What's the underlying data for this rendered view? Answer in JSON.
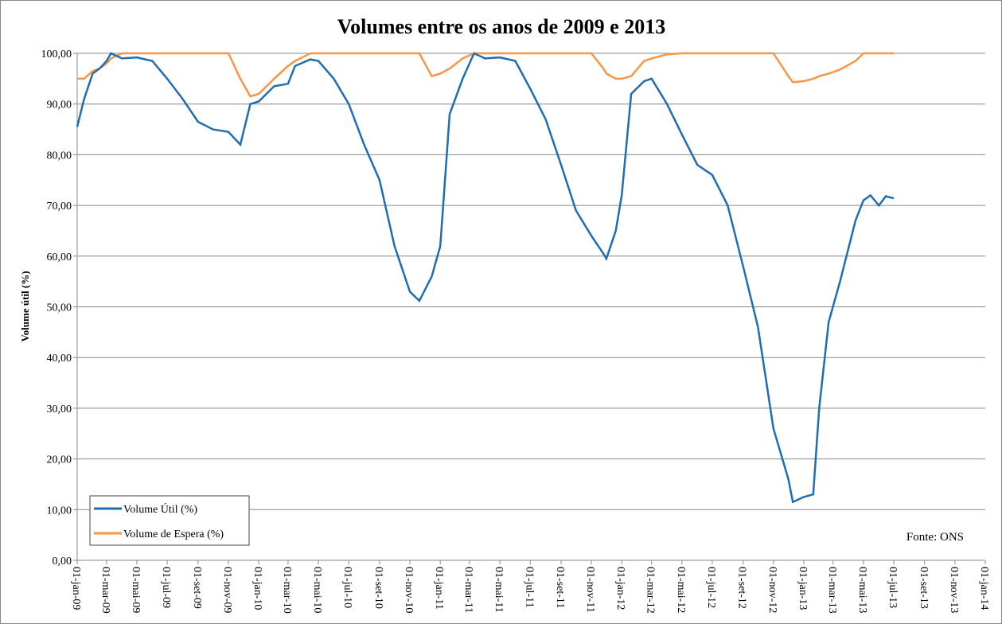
{
  "chart_data": {
    "type": "line",
    "title": "Volumes entre os anos de 2009 e 2013",
    "y_label": "Volume útil (%)",
    "annotation": "Fonte: ONS",
    "legend": "lower left",
    "grid": true,
    "ylim": [
      0,
      100
    ],
    "yticks": [
      {
        "value": 0,
        "label": "0,00"
      },
      {
        "value": 10,
        "label": "10,00"
      },
      {
        "value": 20,
        "label": "20,00"
      },
      {
        "value": 30,
        "label": "30,00"
      },
      {
        "value": 40,
        "label": "40,00"
      },
      {
        "value": 50,
        "label": "50,00"
      },
      {
        "value": 60,
        "label": "60,00"
      },
      {
        "value": 70,
        "label": "70,00"
      },
      {
        "value": 80,
        "label": "80,00"
      },
      {
        "value": 90,
        "label": "90,00"
      },
      {
        "value": 100,
        "label": "100,00"
      }
    ],
    "xlim": [
      "2009-01-01",
      "2014-01-01"
    ],
    "xticks": [
      {
        "value": "2009-01-01",
        "label": "01-jan-09"
      },
      {
        "value": "2009-03-01",
        "label": "01-mar-09"
      },
      {
        "value": "2009-05-01",
        "label": "01-mai-09"
      },
      {
        "value": "2009-07-01",
        "label": "01-jul-09"
      },
      {
        "value": "2009-09-01",
        "label": "01-set-09"
      },
      {
        "value": "2009-11-01",
        "label": "01-nov-09"
      },
      {
        "value": "2010-01-01",
        "label": "01-jan-10"
      },
      {
        "value": "2010-03-01",
        "label": "01-mar-10"
      },
      {
        "value": "2010-05-01",
        "label": "01-mai-10"
      },
      {
        "value": "2010-07-01",
        "label": "01-jul-10"
      },
      {
        "value": "2010-09-01",
        "label": "01-set-10"
      },
      {
        "value": "2010-11-01",
        "label": "01-nov-10"
      },
      {
        "value": "2011-01-01",
        "label": "01-jan-11"
      },
      {
        "value": "2011-03-01",
        "label": "01-mar-11"
      },
      {
        "value": "2011-05-01",
        "label": "01-mai-11"
      },
      {
        "value": "2011-07-01",
        "label": "01-jul-11"
      },
      {
        "value": "2011-09-01",
        "label": "01-set-11"
      },
      {
        "value": "2011-11-01",
        "label": "01-nov-11"
      },
      {
        "value": "2012-01-01",
        "label": "01-jan-12"
      },
      {
        "value": "2012-03-01",
        "label": "01-mar-12"
      },
      {
        "value": "2012-05-01",
        "label": "01-mai-12"
      },
      {
        "value": "2012-07-01",
        "label": "01-jul-12"
      },
      {
        "value": "2012-09-01",
        "label": "01-set-12"
      },
      {
        "value": "2012-11-01",
        "label": "01-nov-12"
      },
      {
        "value": "2013-01-01",
        "label": "01-jan-13"
      },
      {
        "value": "2013-03-01",
        "label": "01-mar-13"
      },
      {
        "value": "2013-05-01",
        "label": "01-mai-13"
      },
      {
        "value": "2013-07-01",
        "label": "01-jul-13"
      },
      {
        "value": "2013-09-01",
        "label": "01-set-13"
      },
      {
        "value": "2013-11-01",
        "label": "01-nov-13"
      },
      {
        "value": "2014-01-01",
        "label": "01-jan-14"
      }
    ],
    "x": [
      "2009-01-01",
      "2009-01-15",
      "2009-02-01",
      "2009-02-15",
      "2009-03-01",
      "2009-03-10",
      "2009-04-01",
      "2009-05-01",
      "2009-06-01",
      "2009-07-01",
      "2009-08-01",
      "2009-09-01",
      "2009-10-01",
      "2009-11-01",
      "2009-11-25",
      "2009-12-15",
      "2010-01-01",
      "2010-02-01",
      "2010-03-01",
      "2010-03-15",
      "2010-04-15",
      "2010-05-01",
      "2010-06-01",
      "2010-07-01",
      "2010-08-01",
      "2010-09-01",
      "2010-10-01",
      "2010-11-01",
      "2010-11-20",
      "2010-12-15",
      "2011-01-01",
      "2011-01-20",
      "2011-02-15",
      "2011-03-10",
      "2011-04-01",
      "2011-05-01",
      "2011-06-01",
      "2011-07-01",
      "2011-08-01",
      "2011-09-01",
      "2011-10-01",
      "2011-11-01",
      "2011-11-25",
      "2011-12-01",
      "2011-12-20",
      "2012-01-01",
      "2012-01-20",
      "2012-02-15",
      "2012-03-01",
      "2012-04-01",
      "2012-05-01",
      "2012-06-01",
      "2012-07-01",
      "2012-08-01",
      "2012-09-01",
      "2012-10-01",
      "2012-11-01",
      "2012-12-01",
      "2012-12-10",
      "2013-01-01",
      "2013-01-20",
      "2013-02-01",
      "2013-02-20",
      "2013-03-15",
      "2013-04-15",
      "2013-05-01",
      "2013-05-15",
      "2013-06-01",
      "2013-06-15",
      "2013-07-01"
    ],
    "series": [
      {
        "name": "Volume Útil (%)",
        "color": "#1f6db5",
        "values": [
          85.5,
          91,
          96,
          97,
          98.5,
          100,
          99,
          99.2,
          98.5,
          95,
          91,
          86.5,
          85,
          84.5,
          82,
          90,
          90.5,
          93.5,
          94,
          97.5,
          98.8,
          98.5,
          95,
          90,
          82,
          75,
          62,
          53,
          51.2,
          56,
          62,
          88,
          95,
          100,
          99,
          99.2,
          98.5,
          93,
          87,
          78,
          69,
          64,
          60.5,
          59.5,
          65,
          72,
          92,
          94.5,
          95,
          90,
          84,
          78,
          76,
          70,
          58,
          46,
          26,
          16,
          11.5,
          12.5,
          13,
          30,
          47,
          55,
          67,
          71,
          72,
          70,
          71.8,
          71.4
        ]
      },
      {
        "name": "Volume de Espera (%)",
        "color": "#f79646",
        "values": [
          95,
          95,
          96.5,
          97,
          98,
          99,
          100,
          100,
          100,
          100,
          100,
          100,
          100,
          100,
          95,
          91.5,
          92,
          95,
          97.5,
          98.5,
          100,
          100,
          100,
          100,
          100,
          100,
          100,
          100,
          100,
          95.5,
          96,
          97,
          99,
          100,
          100,
          100,
          100,
          100,
          100,
          100,
          100,
          100,
          97,
          96,
          95,
          95,
          95.5,
          98.5,
          99,
          99.8,
          100,
          100,
          100,
          100,
          100,
          100,
          100,
          95.5,
          94.3,
          94.5,
          95,
          95.5,
          96,
          96.8,
          98.5,
          100,
          100,
          100,
          100,
          100
        ]
      }
    ]
  }
}
